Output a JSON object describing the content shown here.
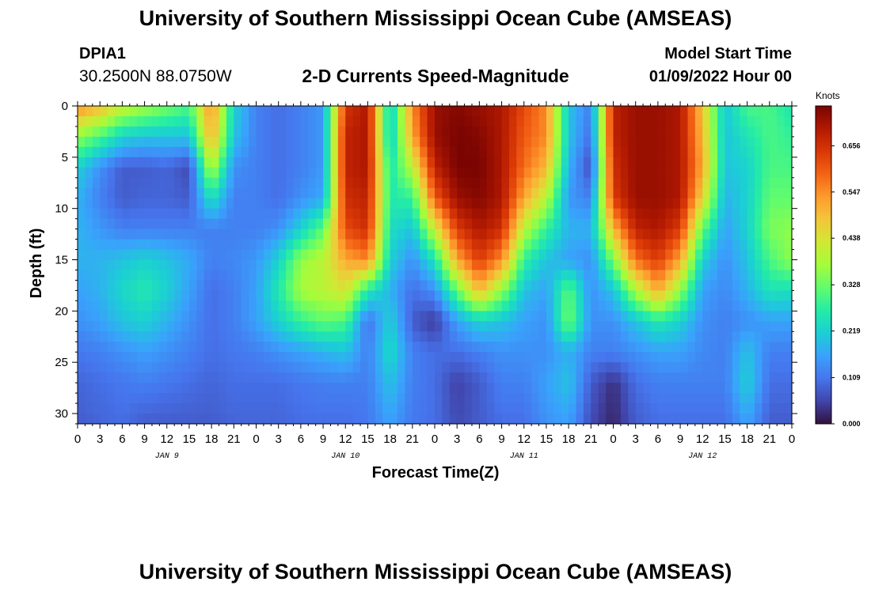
{
  "header": {
    "title": "University of Southern Mississippi Ocean Cube (AMSEAS)",
    "station_id": "DPIA1",
    "station_coords": "30.2500N  88.0750W",
    "plot_title": "2-D Currents Speed-Magnitude",
    "model_start_label": "Model Start Time",
    "model_start_value": "01/09/2022 Hour 00"
  },
  "footer": {
    "title": "University of Southern Mississippi Ocean Cube (AMSEAS)"
  },
  "colors": {
    "background": "#ffffff",
    "colormap": [
      "#30123b",
      "#4145ab",
      "#4675ed",
      "#39a2fc",
      "#1bcfd4",
      "#24eca6",
      "#61fc6c",
      "#a4fc3b",
      "#d1e834",
      "#f3c63a",
      "#fe9b2d",
      "#f36315",
      "#d93806",
      "#b11901",
      "#7a0402"
    ]
  },
  "chart_data": {
    "type": "heatmap",
    "xlabel": "Forecast Time(Z)",
    "ylabel": "Depth (ft)",
    "x_range_hours": [
      0,
      96
    ],
    "y_range_ft": [
      0,
      31
    ],
    "x_ticks": [
      "0",
      "3",
      "6",
      "9",
      "12",
      "15",
      "18",
      "21",
      "0",
      "3",
      "6",
      "9",
      "12",
      "15",
      "18",
      "21",
      "0",
      "3",
      "6",
      "9",
      "12",
      "15",
      "18",
      "21",
      "0",
      "3",
      "6",
      "9",
      "12",
      "15",
      "18",
      "21",
      "0"
    ],
    "x_day_labels": [
      "JAN 9",
      "JAN 10",
      "JAN 11",
      "JAN 12"
    ],
    "y_ticks": [
      "0",
      "5",
      "10",
      "15",
      "20",
      "25",
      "30"
    ],
    "colorbar": {
      "title": "Knots",
      "min": 0,
      "max": 0.75,
      "ticks": [
        "0.656",
        "0.547",
        "0.438",
        "0.328",
        "0.219",
        "0.109",
        "0.000"
      ]
    },
    "depths_ft": [
      0,
      3,
      6,
      9,
      12,
      15,
      18,
      21,
      24,
      27,
      31
    ],
    "times_h": [
      0,
      3,
      6,
      9,
      12,
      15,
      18,
      21,
      24,
      27,
      30,
      33,
      36,
      39,
      42,
      45,
      48,
      51,
      54,
      57,
      60,
      63,
      66,
      69,
      72,
      75,
      78,
      81,
      84,
      87,
      90,
      93,
      96
    ],
    "speed_knots": [
      [
        0.55,
        0.5,
        0.42,
        0.38,
        0.34,
        0.3,
        0.55,
        0.22,
        0.12,
        0.1,
        0.12,
        0.15,
        0.65,
        0.7,
        0.2,
        0.55,
        0.72,
        0.74,
        0.72,
        0.7,
        0.62,
        0.55,
        0.2,
        0.12,
        0.68,
        0.72,
        0.72,
        0.7,
        0.48,
        0.2,
        0.3,
        0.3,
        0.25
      ],
      [
        0.36,
        0.3,
        0.22,
        0.2,
        0.2,
        0.2,
        0.52,
        0.2,
        0.12,
        0.1,
        0.12,
        0.15,
        0.68,
        0.7,
        0.2,
        0.52,
        0.72,
        0.75,
        0.74,
        0.7,
        0.6,
        0.55,
        0.2,
        0.1,
        0.68,
        0.72,
        0.72,
        0.7,
        0.5,
        0.2,
        0.25,
        0.3,
        0.28
      ],
      [
        0.22,
        0.14,
        0.08,
        0.08,
        0.09,
        0.06,
        0.4,
        0.14,
        0.12,
        0.1,
        0.12,
        0.15,
        0.68,
        0.7,
        0.25,
        0.4,
        0.68,
        0.75,
        0.75,
        0.7,
        0.58,
        0.5,
        0.18,
        0.06,
        0.66,
        0.72,
        0.72,
        0.7,
        0.52,
        0.2,
        0.22,
        0.3,
        0.3
      ],
      [
        0.18,
        0.12,
        0.08,
        0.09,
        0.09,
        0.08,
        0.25,
        0.12,
        0.12,
        0.1,
        0.14,
        0.17,
        0.66,
        0.68,
        0.26,
        0.28,
        0.6,
        0.72,
        0.74,
        0.7,
        0.52,
        0.4,
        0.15,
        0.12,
        0.64,
        0.72,
        0.72,
        0.7,
        0.46,
        0.18,
        0.22,
        0.32,
        0.32
      ],
      [
        0.18,
        0.15,
        0.12,
        0.12,
        0.12,
        0.12,
        0.12,
        0.12,
        0.12,
        0.14,
        0.22,
        0.32,
        0.62,
        0.66,
        0.24,
        0.2,
        0.42,
        0.64,
        0.7,
        0.66,
        0.4,
        0.28,
        0.18,
        0.18,
        0.5,
        0.68,
        0.7,
        0.64,
        0.32,
        0.16,
        0.22,
        0.34,
        0.36
      ],
      [
        0.18,
        0.18,
        0.2,
        0.22,
        0.2,
        0.17,
        0.12,
        0.13,
        0.15,
        0.22,
        0.36,
        0.4,
        0.52,
        0.56,
        0.22,
        0.14,
        0.25,
        0.52,
        0.64,
        0.55,
        0.28,
        0.2,
        0.16,
        0.14,
        0.34,
        0.58,
        0.64,
        0.52,
        0.22,
        0.14,
        0.2,
        0.3,
        0.36
      ],
      [
        0.16,
        0.18,
        0.23,
        0.26,
        0.22,
        0.16,
        0.1,
        0.12,
        0.16,
        0.26,
        0.38,
        0.4,
        0.44,
        0.26,
        0.18,
        0.1,
        0.14,
        0.32,
        0.5,
        0.36,
        0.2,
        0.16,
        0.32,
        0.14,
        0.2,
        0.38,
        0.52,
        0.36,
        0.16,
        0.13,
        0.18,
        0.25,
        0.24
      ],
      [
        0.14,
        0.16,
        0.2,
        0.22,
        0.18,
        0.14,
        0.1,
        0.12,
        0.16,
        0.22,
        0.28,
        0.32,
        0.3,
        0.1,
        0.22,
        0.08,
        0.04,
        0.16,
        0.22,
        0.2,
        0.16,
        0.14,
        0.34,
        0.14,
        0.14,
        0.2,
        0.26,
        0.22,
        0.14,
        0.12,
        0.14,
        0.16,
        0.16
      ],
      [
        0.11,
        0.12,
        0.14,
        0.16,
        0.14,
        0.12,
        0.1,
        0.11,
        0.12,
        0.14,
        0.16,
        0.18,
        0.2,
        0.12,
        0.24,
        0.12,
        0.1,
        0.1,
        0.12,
        0.14,
        0.14,
        0.14,
        0.18,
        0.12,
        0.12,
        0.14,
        0.16,
        0.16,
        0.13,
        0.12,
        0.2,
        0.12,
        0.12
      ],
      [
        0.09,
        0.1,
        0.11,
        0.12,
        0.11,
        0.1,
        0.09,
        0.1,
        0.1,
        0.1,
        0.11,
        0.12,
        0.12,
        0.12,
        0.2,
        0.12,
        0.1,
        0.05,
        0.08,
        0.12,
        0.12,
        0.16,
        0.2,
        0.08,
        0.03,
        0.1,
        0.12,
        0.12,
        0.12,
        0.12,
        0.22,
        0.1,
        0.1
      ],
      [
        0.08,
        0.09,
        0.1,
        0.08,
        0.08,
        0.08,
        0.08,
        0.09,
        0.09,
        0.09,
        0.1,
        0.1,
        0.1,
        0.11,
        0.16,
        0.11,
        0.1,
        0.06,
        0.08,
        0.1,
        0.1,
        0.14,
        0.16,
        0.06,
        0.02,
        0.08,
        0.1,
        0.1,
        0.1,
        0.1,
        0.16,
        0.08,
        0.08
      ]
    ]
  }
}
